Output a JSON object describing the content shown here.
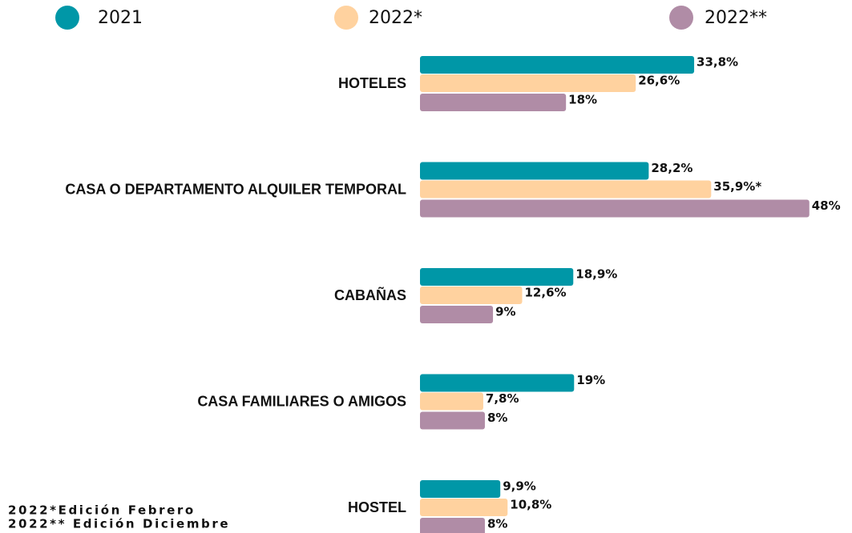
{
  "chart_data": {
    "type": "hbar",
    "categories": [
      "HOTELES",
      "CASA O DEPARTAMENTO ALQUILER TEMPORAL",
      "CABAÑAS",
      "CASA FAMILIARES O AMIGOS",
      "HOSTEL"
    ],
    "series": [
      {
        "name": "2021",
        "color": "#0097a7",
        "values": [
          33.8,
          28.2,
          18.9,
          19,
          9.9
        ],
        "value_labels": [
          "33,8%",
          "28,2%",
          "18,9%",
          "19%",
          "9,9%"
        ]
      },
      {
        "name": "2022*",
        "color": "#ffd29f",
        "values": [
          26.6,
          35.9,
          12.6,
          7.8,
          10.8
        ],
        "value_labels": [
          "26,6%",
          "35,9%*",
          "12,6%",
          "7,8%",
          "10,8%"
        ]
      },
      {
        "name": "2022**",
        "color": "#b08ca6",
        "values": [
          18,
          48,
          9,
          8,
          8
        ],
        "value_labels": [
          "18%",
          "48%",
          "9%",
          "8%",
          "8%"
        ]
      }
    ],
    "annotations": [
      "2022*Edición Febrero",
      "2022** Edición Diciembre"
    ]
  }
}
